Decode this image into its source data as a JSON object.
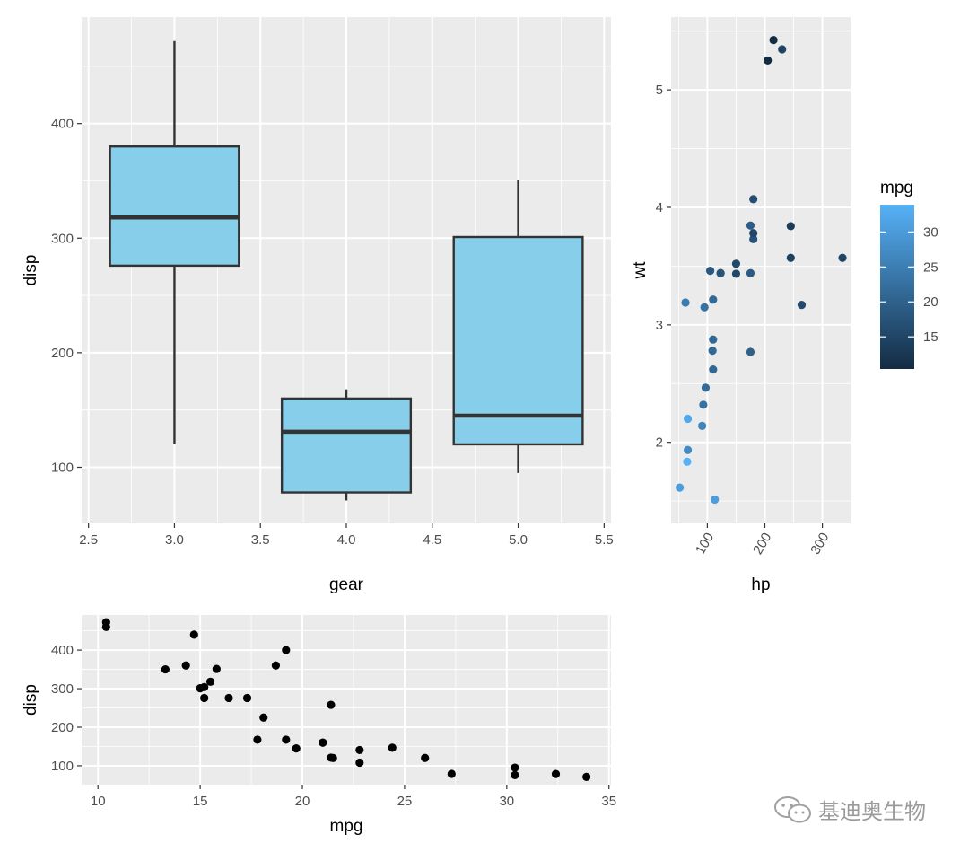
{
  "chart_data": [
    {
      "type": "box",
      "xlabel": "gear",
      "ylabel": "disp",
      "xlim": [
        2.46,
        5.54
      ],
      "ylim": [
        51,
        493
      ],
      "xticks": [
        "2.5",
        "3.0",
        "3.5",
        "4.0",
        "4.5",
        "5.0",
        "5.5"
      ],
      "yticks": [
        "100",
        "200",
        "300",
        "400"
      ],
      "fill": "#87CEEB",
      "boxes": [
        {
          "x": 3,
          "min": 120,
          "q1": 276,
          "median": 318,
          "q3": 380,
          "max": 472
        },
        {
          "x": 4,
          "min": 71,
          "q1": 78,
          "median": 131,
          "q3": 160,
          "max": 168
        },
        {
          "x": 5,
          "min": 95,
          "q1": 120,
          "median": 145,
          "q3": 301,
          "max": 351
        }
      ]
    },
    {
      "type": "scatter",
      "xlabel": "hp",
      "ylabel": "wt",
      "color_by": "mpg",
      "xlim": [
        37,
        349
      ],
      "ylim": [
        1.31,
        5.62
      ],
      "xticks": [
        "100",
        "200",
        "300"
      ],
      "yticks": [
        "2",
        "3",
        "4",
        "5"
      ],
      "legend": {
        "title": "mpg",
        "position": "right",
        "ticks": [
          "15",
          "20",
          "25",
          "30"
        ],
        "range": [
          10.4,
          33.9
        ],
        "low_color": "#132B43",
        "high_color": "#56B1F7"
      },
      "points": [
        {
          "x": 110,
          "y": 2.62,
          "mpg": 21.0
        },
        {
          "x": 110,
          "y": 2.875,
          "mpg": 21.0
        },
        {
          "x": 93,
          "y": 2.32,
          "mpg": 22.8
        },
        {
          "x": 110,
          "y": 3.215,
          "mpg": 21.4
        },
        {
          "x": 175,
          "y": 3.44,
          "mpg": 18.7
        },
        {
          "x": 105,
          "y": 3.46,
          "mpg": 18.1
        },
        {
          "x": 245,
          "y": 3.57,
          "mpg": 14.3
        },
        {
          "x": 62,
          "y": 3.19,
          "mpg": 24.4
        },
        {
          "x": 95,
          "y": 3.15,
          "mpg": 22.8
        },
        {
          "x": 123,
          "y": 3.44,
          "mpg": 19.2
        },
        {
          "x": 123,
          "y": 3.44,
          "mpg": 17.8
        },
        {
          "x": 180,
          "y": 4.07,
          "mpg": 16.4
        },
        {
          "x": 180,
          "y": 3.73,
          "mpg": 17.3
        },
        {
          "x": 180,
          "y": 3.78,
          "mpg": 15.2
        },
        {
          "x": 205,
          "y": 5.25,
          "mpg": 10.4
        },
        {
          "x": 215,
          "y": 5.424,
          "mpg": 10.4
        },
        {
          "x": 230,
          "y": 5.345,
          "mpg": 14.7
        },
        {
          "x": 66,
          "y": 2.2,
          "mpg": 32.4
        },
        {
          "x": 52,
          "y": 1.615,
          "mpg": 30.4
        },
        {
          "x": 65,
          "y": 1.835,
          "mpg": 33.9
        },
        {
          "x": 97,
          "y": 2.465,
          "mpg": 21.5
        },
        {
          "x": 150,
          "y": 3.52,
          "mpg": 15.5
        },
        {
          "x": 150,
          "y": 3.435,
          "mpg": 15.2
        },
        {
          "x": 245,
          "y": 3.84,
          "mpg": 13.3
        },
        {
          "x": 175,
          "y": 3.845,
          "mpg": 19.2
        },
        {
          "x": 66,
          "y": 1.935,
          "mpg": 27.3
        },
        {
          "x": 91,
          "y": 2.14,
          "mpg": 26.0
        },
        {
          "x": 113,
          "y": 1.513,
          "mpg": 30.4
        },
        {
          "x": 264,
          "y": 3.17,
          "mpg": 15.8
        },
        {
          "x": 175,
          "y": 2.77,
          "mpg": 19.7
        },
        {
          "x": 335,
          "y": 3.57,
          "mpg": 15.0
        },
        {
          "x": 109,
          "y": 2.78,
          "mpg": 21.4
        }
      ]
    },
    {
      "type": "scatter",
      "xlabel": "mpg",
      "ylabel": "disp",
      "xlim": [
        9.2,
        35.1
      ],
      "ylim": [
        51,
        491
      ],
      "xticks": [
        "10",
        "15",
        "20",
        "25",
        "30",
        "35"
      ],
      "yticks": [
        "100",
        "200",
        "300",
        "400"
      ],
      "points": [
        {
          "x": 21.0,
          "y": 160
        },
        {
          "x": 21.0,
          "y": 160
        },
        {
          "x": 22.8,
          "y": 108
        },
        {
          "x": 21.4,
          "y": 258
        },
        {
          "x": 18.7,
          "y": 360
        },
        {
          "x": 18.1,
          "y": 225
        },
        {
          "x": 14.3,
          "y": 360
        },
        {
          "x": 24.4,
          "y": 146.7
        },
        {
          "x": 22.8,
          "y": 140.8
        },
        {
          "x": 19.2,
          "y": 167.6
        },
        {
          "x": 17.8,
          "y": 167.6
        },
        {
          "x": 16.4,
          "y": 275.8
        },
        {
          "x": 17.3,
          "y": 275.8
        },
        {
          "x": 15.2,
          "y": 275.8
        },
        {
          "x": 10.4,
          "y": 472
        },
        {
          "x": 10.4,
          "y": 460
        },
        {
          "x": 14.7,
          "y": 440
        },
        {
          "x": 32.4,
          "y": 78.7
        },
        {
          "x": 30.4,
          "y": 75.7
        },
        {
          "x": 33.9,
          "y": 71.1
        },
        {
          "x": 21.5,
          "y": 120.1
        },
        {
          "x": 15.5,
          "y": 318
        },
        {
          "x": 15.2,
          "y": 304
        },
        {
          "x": 13.3,
          "y": 350
        },
        {
          "x": 19.2,
          "y": 400
        },
        {
          "x": 27.3,
          "y": 79
        },
        {
          "x": 26.0,
          "y": 120.3
        },
        {
          "x": 30.4,
          "y": 95.1
        },
        {
          "x": 15.8,
          "y": 351
        },
        {
          "x": 19.7,
          "y": 145
        },
        {
          "x": 15.0,
          "y": 301
        },
        {
          "x": 21.4,
          "y": 121
        }
      ]
    }
  ],
  "watermark": {
    "text": "基迪奥生物",
    "icon": "wechat-icon"
  }
}
